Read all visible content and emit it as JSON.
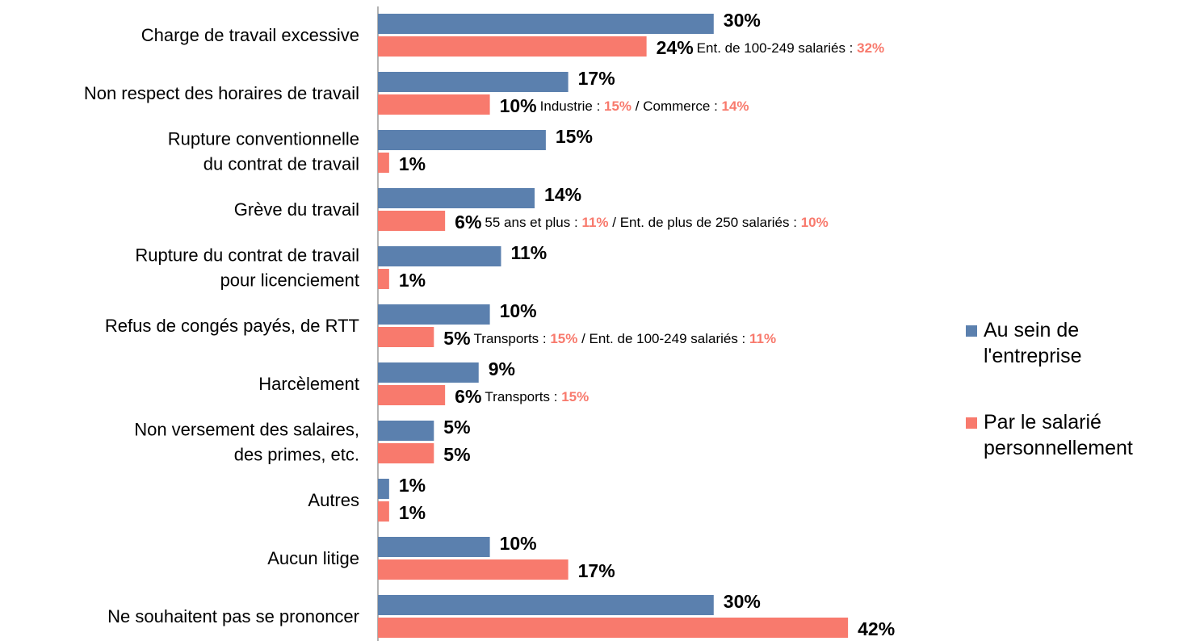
{
  "chart_data": {
    "type": "hbar",
    "categories": [
      "Charge de travail excessive",
      "Non respect des horaires de travail",
      "Rupture conventionnelle\ndu contrat de travail",
      "Grève du travail",
      "Rupture du contrat de travail\npour licenciement",
      "Refus de congés payés, de RTT",
      "Harcèlement",
      "Non versement des salaires,\ndes primes, etc.",
      "Autres",
      "Aucun litige",
      "Ne souhaitent pas se prononcer"
    ],
    "series": [
      {
        "name": "Au sein de\nl'entreprise",
        "color": "#5b80ae",
        "values": [
          30,
          17,
          15,
          14,
          11,
          10,
          9,
          5,
          1,
          10,
          30
        ],
        "value_labels": [
          "30%",
          "17%",
          "15%",
          "14%",
          "11%",
          "10%",
          "9%",
          "5%",
          "1%",
          "10%",
          "30%"
        ]
      },
      {
        "name": "Par le salarié\npersonnellement",
        "color": "#f87a6d",
        "values": [
          24,
          10,
          1,
          6,
          1,
          5,
          6,
          5,
          1,
          17,
          42
        ],
        "value_labels": [
          "24%",
          "10%",
          "1%",
          "6%",
          "1%",
          "5%",
          "6%",
          "5%",
          "1%",
          "17%",
          "42%"
        ]
      }
    ],
    "annotations": [
      [
        "Ent. de 100-249 salariés : ",
        "32%"
      ],
      [
        "Industrie : ",
        "15%",
        " / Commerce : ",
        "14%"
      ],
      null,
      [
        "55 ans et plus : ",
        "11%",
        " / Ent. de plus de 250 salariés : ",
        "10%"
      ],
      null,
      [
        "Transports : ",
        "15%",
        " / Ent. de 100-249 salariés : ",
        "11%"
      ],
      [
        "Transports : ",
        "15%"
      ],
      null,
      null,
      null,
      null
    ],
    "xlim": [
      0,
      50
    ]
  }
}
